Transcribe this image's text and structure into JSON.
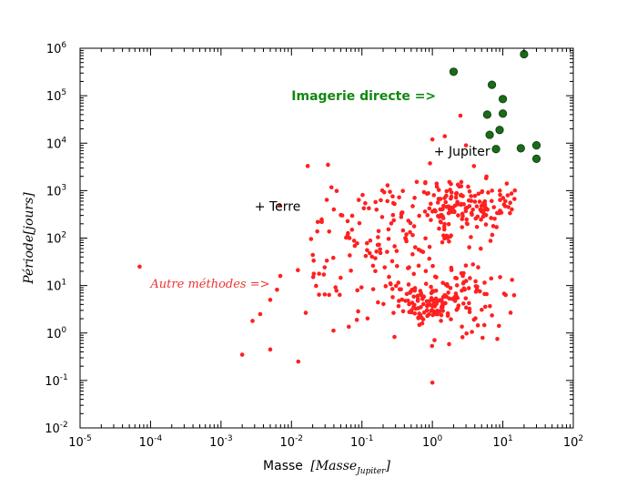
{
  "chart_data": {
    "type": "scatter",
    "xscale": "log",
    "yscale": "log",
    "xlim": [
      1e-05,
      100
    ],
    "ylim": [
      0.01,
      1000000
    ],
    "xlabel": "Masse",
    "xlabel_math": "[Masse",
    "xlabel_math_sub": "Jupiter",
    "xlabel_math_close": "]",
    "ylabel": "Période[jours]",
    "grid": false,
    "x_ticks": [
      {
        "base": "10",
        "exp": "-5"
      },
      {
        "base": "10",
        "exp": "-4"
      },
      {
        "base": "10",
        "exp": "-3"
      },
      {
        "base": "10",
        "exp": "-2"
      },
      {
        "base": "10",
        "exp": "-1"
      },
      {
        "base": "10",
        "exp": "0"
      },
      {
        "base": "10",
        "exp": "1"
      },
      {
        "base": "10",
        "exp": "2"
      }
    ],
    "y_ticks": [
      {
        "base": "10",
        "exp": "-2"
      },
      {
        "base": "10",
        "exp": "-1"
      },
      {
        "base": "10",
        "exp": "0"
      },
      {
        "base": "10",
        "exp": "1"
      },
      {
        "base": "10",
        "exp": "2"
      },
      {
        "base": "10",
        "exp": "3"
      },
      {
        "base": "10",
        "exp": "4"
      },
      {
        "base": "10",
        "exp": "5"
      },
      {
        "base": "10",
        "exp": "6"
      }
    ],
    "annotations": {
      "direct": "Imagerie directe =>",
      "other": "Autre méthodes =>",
      "terre": "+ Terre",
      "jupiter": "+ Jupiter"
    },
    "colors": {
      "other_methods": "#ff2020",
      "direct_imaging": "#1a6b1a",
      "direct_imaging_edge": "#0a3a0a",
      "annotation_green": "#118811",
      "annotation_red": "#ee3333"
    },
    "series": [
      {
        "method": "direct-imaging",
        "points": [
          [
            2.0,
            320000
          ],
          [
            20.0,
            750000
          ],
          [
            7.0,
            170000
          ],
          [
            10.0,
            85000
          ],
          [
            6.0,
            40000
          ],
          [
            10.0,
            42000
          ],
          [
            9.0,
            19000
          ],
          [
            6.5,
            15000
          ],
          [
            8.0,
            7500
          ],
          [
            18.0,
            7800
          ],
          [
            30.0,
            9000
          ],
          [
            30.0,
            4700
          ]
        ]
      },
      {
        "method": "other-methods",
        "generated": true,
        "outliers": [
          [
            7e-05,
            25
          ],
          [
            0.002,
            0.35
          ],
          [
            0.0028,
            1.8
          ],
          [
            0.005,
            0.45
          ],
          [
            0.0125,
            0.25
          ],
          [
            1.0,
            0.09
          ],
          [
            0.0036,
            2.5
          ],
          [
            0.005,
            5
          ],
          [
            0.017,
            3300
          ],
          [
            0.033,
            3500
          ],
          [
            1.5,
            14000
          ],
          [
            2.5,
            38000
          ],
          [
            1.0,
            12000
          ],
          [
            3.0,
            9000
          ]
        ],
        "clusters": [
          {
            "n": 150,
            "cx": 0.5,
            "cy": 2.7,
            "sx": 0.42,
            "sy": 0.3,
            "xmin": -2.7,
            "xmax": 1.35,
            "ymin": 0.1,
            "ymax": 3.6,
            "seed": 11
          },
          {
            "n": 110,
            "cx": -1.0,
            "cy": 1.6,
            "sx": 0.55,
            "sy": 0.75,
            "xmin": -2.4,
            "xmax": 0.3,
            "ymin": -0.1,
            "ymax": 3.1,
            "seed": 23
          },
          {
            "n": 85,
            "cx": -0.05,
            "cy": 0.6,
            "sx": 0.18,
            "sy": 0.18,
            "xmin": -0.8,
            "xmax": 0.7,
            "ymin": -0.3,
            "ymax": 1.4,
            "seed": 37
          },
          {
            "n": 90,
            "cx": 0.45,
            "cy": 0.8,
            "sx": 0.35,
            "sy": 0.45,
            "xmin": -0.7,
            "xmax": 1.3,
            "ymin": -0.4,
            "ymax": 2.2,
            "seed": 53
          },
          {
            "n": 60,
            "cx": -0.2,
            "cy": 2.2,
            "sx": 0.55,
            "sy": 0.6,
            "xmin": -1.8,
            "xmax": 1.2,
            "ymin": 0.8,
            "ymax": 3.6,
            "seed": 71
          }
        ]
      }
    ]
  }
}
